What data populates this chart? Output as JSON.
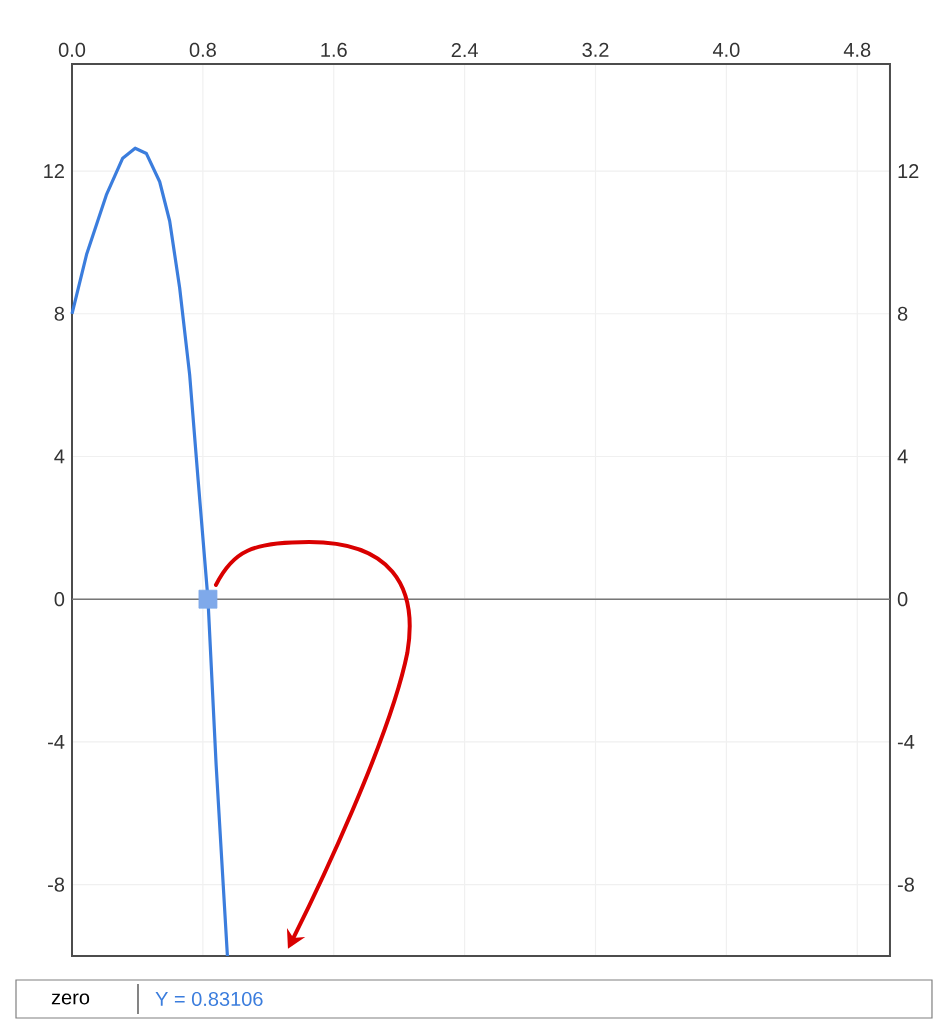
{
  "chart_data": {
    "type": "line",
    "x": [
      0,
      0.089,
      0.21,
      0.31,
      0.386,
      0.455,
      0.536,
      0.597,
      0.658,
      0.719,
      0.771,
      0.83106,
      0.881,
      0.95
    ],
    "series": [
      {
        "color": "#3b7ddd",
        "marker": "none",
        "values": [
          8,
          9.66,
          11.33,
          12.36,
          12.64,
          12.49,
          11.7,
          10.6,
          8.73,
          6.3,
          3.34,
          0,
          -4.64,
          -10
        ]
      },
      {
        "type": "scatter",
        "color": "#7fa9ea",
        "marker": "square",
        "x": [
          0.83106
        ],
        "values": [
          0
        ]
      }
    ],
    "xlim": [
      0,
      5
    ],
    "ylim": [
      -10,
      15
    ],
    "y2lim": [
      -10,
      15
    ],
    "xticks": [
      {
        "value": 0,
        "label": "0.0"
      },
      0.8,
      1.6,
      2.4,
      3.2,
      {
        "value": 4,
        "label": "4.0"
      },
      4.8
    ],
    "yticks": [
      -8,
      -4,
      0,
      4,
      8,
      12
    ],
    "y2ticks": [
      -8,
      -4,
      0,
      4,
      8,
      12
    ],
    "grid": true,
    "line_style": "solid",
    "ref_lines": [
      {
        "axis": "y",
        "value": 0,
        "color": "#777777"
      }
    ],
    "annotations": [
      "zero",
      "Y = 0.83106"
    ]
  }
}
